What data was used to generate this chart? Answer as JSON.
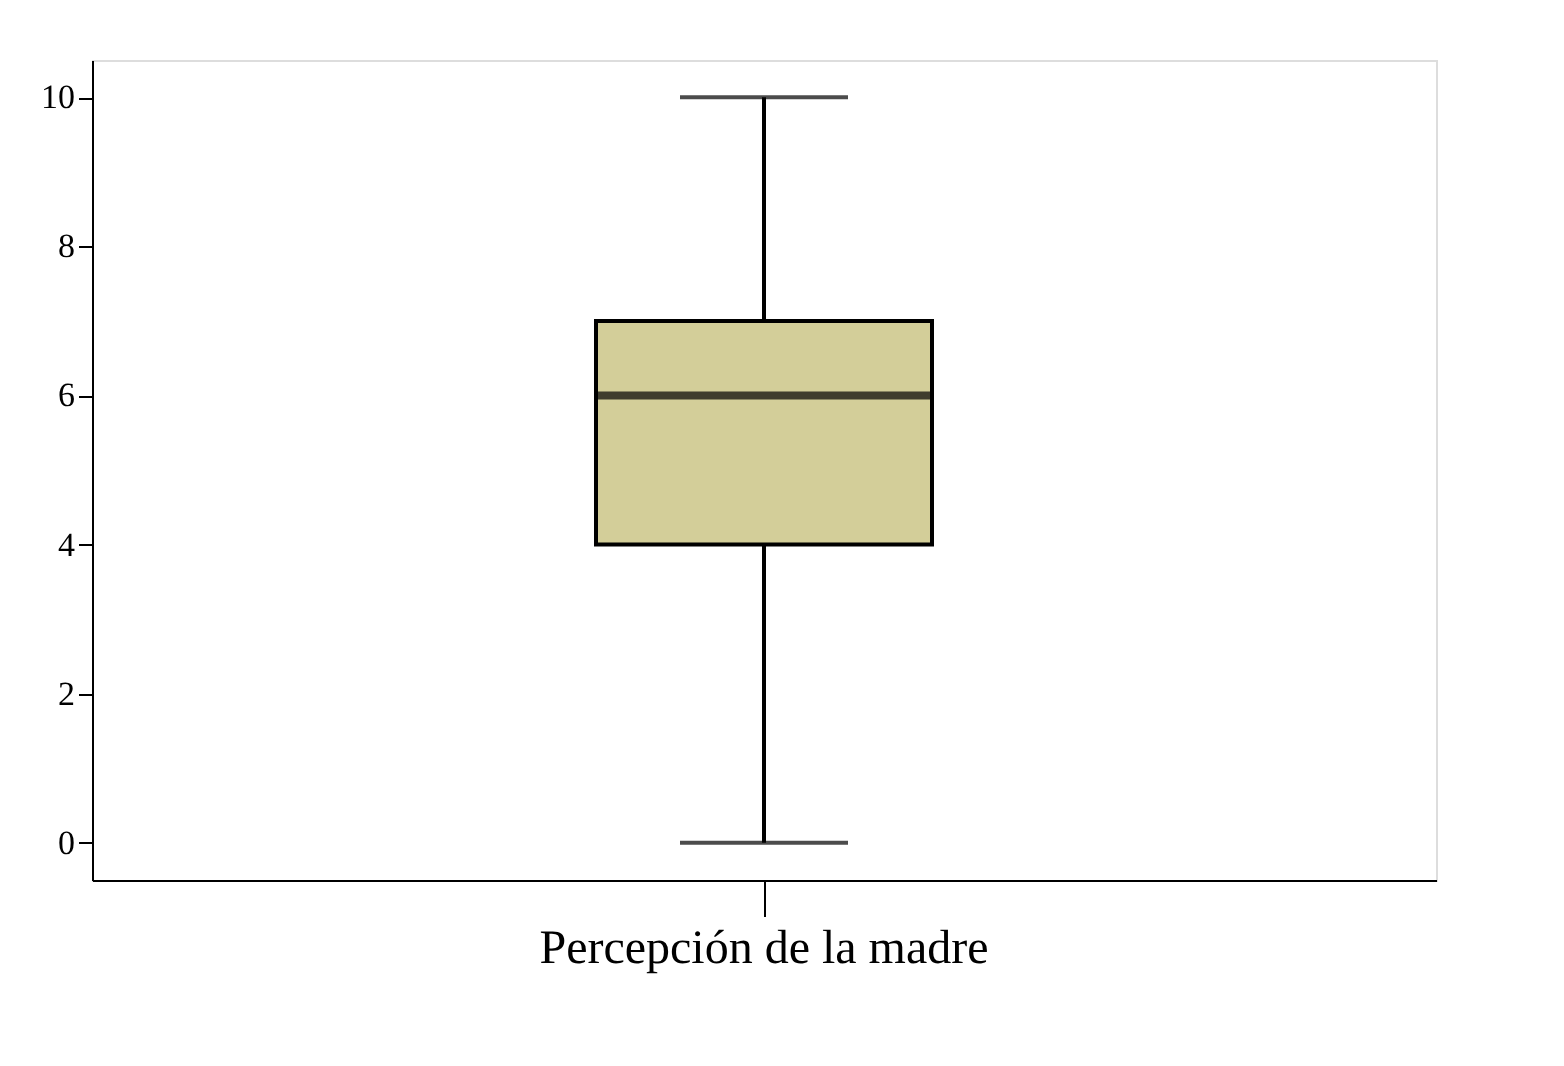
{
  "chart_data": {
    "type": "box",
    "categories": [
      "Percepción de la madre"
    ],
    "boxes": [
      {
        "low": 0,
        "q1": 4,
        "median": 6,
        "q3": 7,
        "high": 10
      }
    ],
    "color": "#d3ce99",
    "ylim": [
      -0.5,
      10.5
    ],
    "yticks": [
      0,
      2,
      4,
      6,
      8,
      10
    ],
    "grid": false
  }
}
